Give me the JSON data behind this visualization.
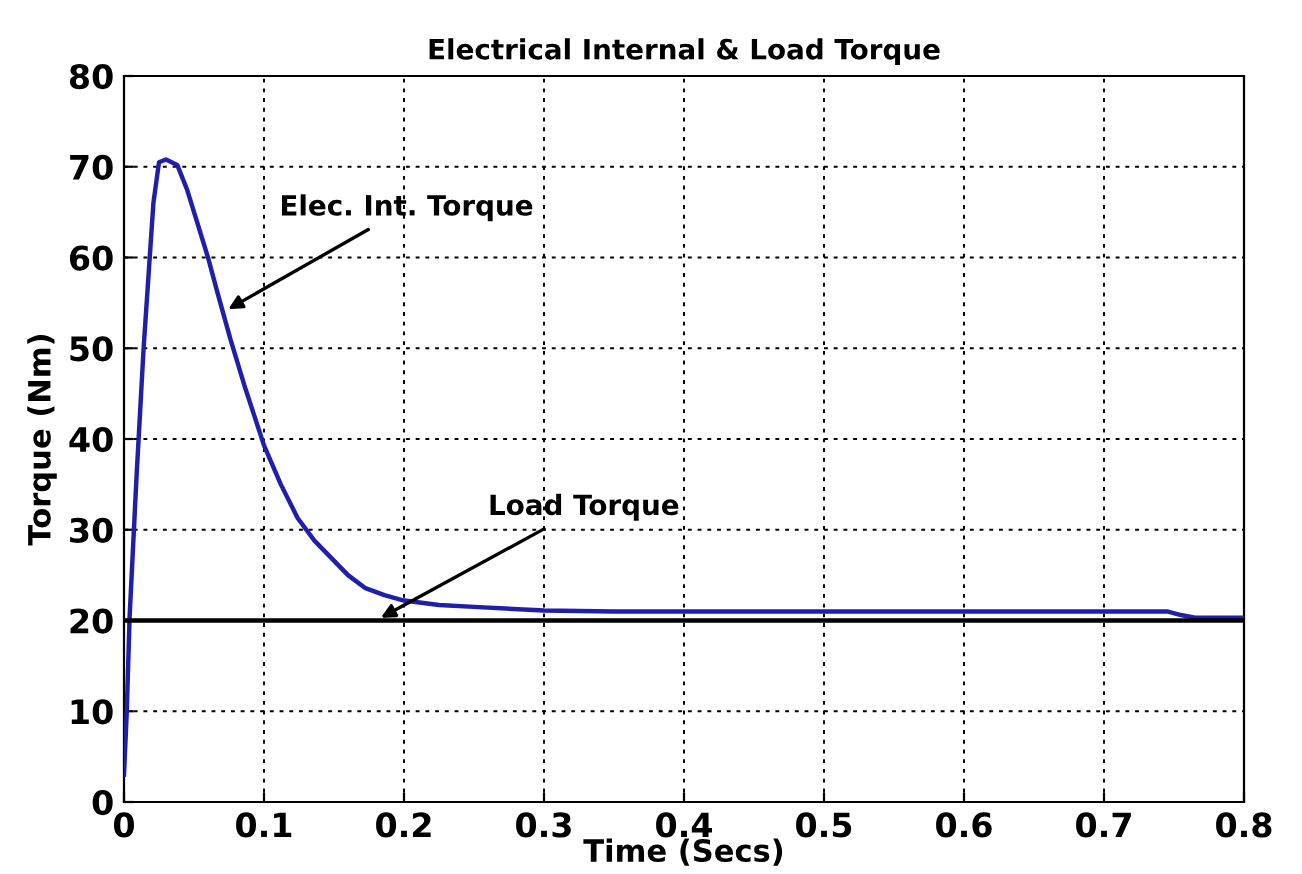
{
  "chart_data": {
    "type": "line",
    "title": "Electrical Internal & Load Torque",
    "xlabel": "Time (Secs)",
    "ylabel": "Torque (Nm)",
    "series": [
      {
        "color": "#1f1fa8",
        "x": [
          0,
          0.002,
          0.004,
          0.009,
          0.014,
          0.021,
          0.025,
          0.03,
          0.038,
          0.045,
          0.052,
          0.06,
          0.067,
          0.076,
          0.086,
          0.1,
          0.112,
          0.124,
          0.136,
          0.148,
          0.16,
          0.172,
          0.186,
          0.2,
          0.225,
          0.25,
          0.3,
          0.35,
          0.4,
          0.5,
          0.6,
          0.7,
          0.745,
          0.755,
          0.765,
          0.8
        ],
        "values": [
          3,
          10,
          20.4,
          36,
          50,
          66,
          70.5,
          70.8,
          70.2,
          67.5,
          64,
          60,
          56,
          51,
          45.9,
          39.3,
          35,
          31.3,
          28.8,
          26.9,
          25,
          23.6,
          22.8,
          22.2,
          21.7,
          21.5,
          21.1,
          21,
          21,
          21,
          21,
          21,
          21,
          20.6,
          20.3,
          20.3
        ]
      },
      {
        "color": "#000000",
        "x": [
          0,
          0.8
        ],
        "values": [
          20,
          20
        ],
        "line_style": "solid"
      }
    ],
    "annotations": [
      {
        "text": "Elec. Int. Torque",
        "x": 0.071,
        "y": 54
      },
      {
        "text": "Load Torque",
        "x": 0.18,
        "y": 20
      }
    ],
    "xlim": [
      0,
      0.8
    ],
    "ylim": [
      0,
      80
    ],
    "xticks": [
      0,
      0.1,
      0.2,
      0.3,
      0.4,
      0.5,
      0.6,
      0.7,
      0.8
    ],
    "yticks": [
      0,
      10,
      20,
      30,
      40,
      50,
      60,
      70,
      80
    ],
    "grid": true
  }
}
